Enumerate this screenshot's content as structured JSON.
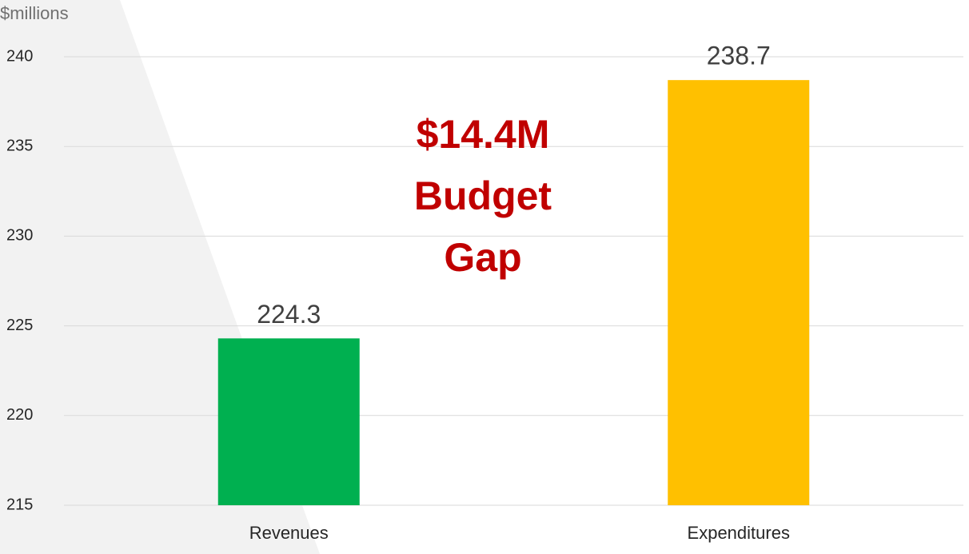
{
  "chart_data": {
    "type": "bar",
    "y_axis_label": "$millions",
    "categories": [
      "Revenues",
      "Expenditures"
    ],
    "values": [
      224.3,
      238.7
    ],
    "colors": [
      "#00b050",
      "#ffc000"
    ],
    "annotation": [
      "$14.4M",
      "Budget",
      "Gap"
    ],
    "annotation_color": "#c00000",
    "ylim": [
      215,
      240
    ],
    "yticks": [
      215,
      220,
      225,
      230,
      235,
      240
    ],
    "grid": true
  }
}
